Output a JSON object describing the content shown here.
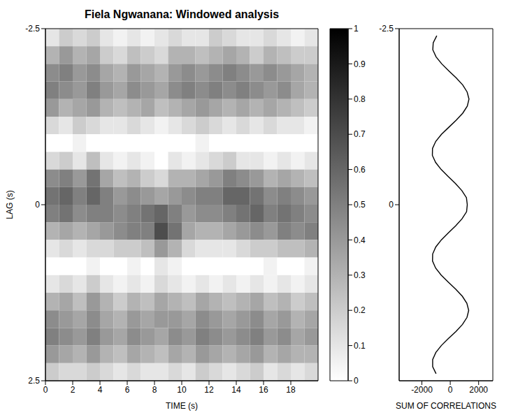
{
  "chart_data": [
    {
      "type": "heatmap",
      "title": "Fiela Ngwanana: Windowed analysis",
      "x_label": "TIME (s)",
      "y_label": "LAG (s)",
      "xlim": [
        0,
        20
      ],
      "xticks": [
        0,
        2,
        4,
        6,
        8,
        10,
        12,
        14,
        16,
        18
      ],
      "ylim": [
        2.5,
        -2.5
      ],
      "yticks": [
        -2.5,
        0,
        2.5
      ],
      "grid": false,
      "x_bins": [
        0,
        1,
        2,
        3,
        4,
        5,
        6,
        7,
        8,
        9,
        10,
        11,
        12,
        13,
        14,
        15,
        16,
        17,
        18,
        19,
        20
      ],
      "y_bins": [
        -2.5,
        -2.25,
        -2,
        -1.75,
        -1.5,
        -1.25,
        -1,
        -0.75,
        -0.5,
        -0.25,
        0,
        0.25,
        0.5,
        0.75,
        1,
        1.25,
        1.5,
        1.75,
        2,
        2.25,
        2.5
      ],
      "cells": [
        [
          0.1,
          0.2,
          0.15,
          0.2,
          0.1,
          0.05,
          0.1,
          0.05,
          0.1,
          0.15,
          0.1,
          0.1,
          0.2,
          0.15,
          0.1,
          0.1,
          0.15,
          0.1,
          0.05,
          0.1
        ],
        [
          0.3,
          0.4,
          0.3,
          0.35,
          0.2,
          0.15,
          0.25,
          0.2,
          0.15,
          0.3,
          0.3,
          0.25,
          0.3,
          0.35,
          0.3,
          0.2,
          0.3,
          0.25,
          0.2,
          0.2
        ],
        [
          0.45,
          0.5,
          0.4,
          0.45,
          0.35,
          0.3,
          0.4,
          0.35,
          0.3,
          0.4,
          0.45,
          0.4,
          0.45,
          0.5,
          0.45,
          0.4,
          0.45,
          0.4,
          0.35,
          0.3
        ],
        [
          0.5,
          0.45,
          0.4,
          0.5,
          0.4,
          0.35,
          0.45,
          0.4,
          0.35,
          0.45,
          0.5,
          0.45,
          0.5,
          0.45,
          0.5,
          0.45,
          0.4,
          0.45,
          0.35,
          0.3
        ],
        [
          0.4,
          0.3,
          0.35,
          0.4,
          0.3,
          0.25,
          0.3,
          0.35,
          0.25,
          0.3,
          0.35,
          0.4,
          0.35,
          0.3,
          0.35,
          0.3,
          0.35,
          0.3,
          0.25,
          0.2
        ],
        [
          0.15,
          0.1,
          0.2,
          0.15,
          0.1,
          0.1,
          0.15,
          0.1,
          0.05,
          0.1,
          0.15,
          0.2,
          0.15,
          0.1,
          0.15,
          0.1,
          0.15,
          0.1,
          0.1,
          0.05
        ],
        [
          0,
          0,
          0.05,
          0,
          0,
          0,
          0,
          0,
          0,
          0,
          0,
          0.05,
          0,
          0,
          0,
          0,
          0,
          0,
          0,
          0
        ],
        [
          0.15,
          0.2,
          0.1,
          0.25,
          0.1,
          0.05,
          0.1,
          0.05,
          0,
          0.1,
          0.05,
          0.1,
          0.15,
          0.2,
          0.1,
          0.1,
          0.05,
          0.1,
          0.05,
          0.1
        ],
        [
          0.45,
          0.5,
          0.4,
          0.55,
          0.35,
          0.25,
          0.3,
          0.2,
          0.15,
          0.3,
          0.3,
          0.35,
          0.4,
          0.5,
          0.45,
          0.4,
          0.3,
          0.35,
          0.3,
          0.25
        ],
        [
          0.55,
          0.6,
          0.5,
          0.6,
          0.5,
          0.4,
          0.45,
          0.4,
          0.35,
          0.4,
          0.45,
          0.5,
          0.5,
          0.6,
          0.6,
          0.55,
          0.45,
          0.5,
          0.45,
          0.4
        ],
        [
          0.5,
          0.55,
          0.45,
          0.5,
          0.5,
          0.45,
          0.5,
          0.55,
          0.6,
          0.5,
          0.4,
          0.45,
          0.45,
          0.5,
          0.55,
          0.6,
          0.5,
          0.55,
          0.5,
          0.45
        ],
        [
          0.3,
          0.35,
          0.3,
          0.35,
          0.4,
          0.45,
          0.5,
          0.5,
          0.7,
          0.55,
          0.35,
          0.3,
          0.3,
          0.35,
          0.4,
          0.45,
          0.4,
          0.5,
          0.45,
          0.5
        ],
        [
          0.1,
          0.15,
          0.1,
          0.15,
          0.15,
          0.2,
          0.2,
          0.25,
          0.4,
          0.3,
          0.15,
          0.1,
          0.1,
          0.1,
          0.15,
          0.2,
          0.2,
          0.25,
          0.25,
          0.3
        ],
        [
          0,
          0,
          0,
          0.05,
          0,
          0,
          0.05,
          0,
          0.1,
          0.05,
          0,
          0,
          0,
          0,
          0,
          0,
          0.05,
          0,
          0,
          0.05
        ],
        [
          0.1,
          0.15,
          0.1,
          0.2,
          0.1,
          0.05,
          0.1,
          0.05,
          0.15,
          0.1,
          0.05,
          0.1,
          0.05,
          0.1,
          0.05,
          0.1,
          0.05,
          0.1,
          0.05,
          0.1
        ],
        [
          0.3,
          0.35,
          0.25,
          0.4,
          0.3,
          0.2,
          0.3,
          0.25,
          0.35,
          0.3,
          0.25,
          0.35,
          0.3,
          0.25,
          0.3,
          0.35,
          0.25,
          0.3,
          0.2,
          0.25
        ],
        [
          0.45,
          0.4,
          0.35,
          0.45,
          0.35,
          0.3,
          0.4,
          0.35,
          0.4,
          0.4,
          0.35,
          0.45,
          0.4,
          0.35,
          0.4,
          0.45,
          0.35,
          0.4,
          0.3,
          0.35
        ],
        [
          0.5,
          0.45,
          0.4,
          0.5,
          0.4,
          0.35,
          0.45,
          0.4,
          0.35,
          0.45,
          0.4,
          0.5,
          0.45,
          0.4,
          0.45,
          0.5,
          0.4,
          0.45,
          0.35,
          0.4
        ],
        [
          0.4,
          0.35,
          0.3,
          0.4,
          0.3,
          0.25,
          0.35,
          0.3,
          0.25,
          0.35,
          0.3,
          0.4,
          0.35,
          0.3,
          0.35,
          0.4,
          0.3,
          0.35,
          0.3,
          0.3
        ],
        [
          0.2,
          0.15,
          0.15,
          0.2,
          0.15,
          0.1,
          0.15,
          0.1,
          0.1,
          0.15,
          0.1,
          0.2,
          0.15,
          0.1,
          0.15,
          0.2,
          0.1,
          0.15,
          0.1,
          0.15
        ]
      ],
      "colorbar": {
        "range": [
          0,
          1
        ],
        "ticks": [
          0,
          0.1,
          0.2,
          0.3,
          0.4,
          0.5,
          0.6,
          0.7,
          0.8,
          0.9,
          1
        ],
        "colors": [
          "#ffffff",
          "#000000"
        ]
      }
    },
    {
      "type": "line",
      "x_label": "SUM OF CORRELATIONS",
      "color": "#000000",
      "grid": false,
      "xlim": [
        -3600,
        3000
      ],
      "xticks": [
        -2000,
        0,
        2000
      ],
      "ylim": [
        2.5,
        -2.5
      ],
      "yticks": [
        -2.5,
        0
      ],
      "y": [
        -2.4,
        -2.3,
        -2.2,
        -2.1,
        -2,
        -1.9,
        -1.8,
        -1.7,
        -1.6,
        -1.5,
        -1.4,
        -1.3,
        -1.2,
        -1.1,
        -1,
        -0.9,
        -0.8,
        -0.7,
        -0.6,
        -0.5,
        -0.4,
        -0.3,
        -0.2,
        -0.1,
        0,
        0.1,
        0.2,
        0.3,
        0.4,
        0.5,
        0.6,
        0.7,
        0.8,
        0.9,
        1,
        1.1,
        1.2,
        1.3,
        1.4,
        1.5,
        1.6,
        1.7,
        1.8,
        1.9,
        2,
        2.1,
        2.2,
        2.3,
        2.4
      ],
      "x": [
        -950,
        -1200,
        -1230,
        -1000,
        -600,
        -100,
        420,
        880,
        1190,
        1320,
        1200,
        880,
        420,
        -100,
        -620,
        -1020,
        -1250,
        -1260,
        -1030,
        -640,
        -140,
        370,
        820,
        1140,
        1200,
        1150,
        830,
        380,
        -130,
        -630,
        -1020,
        -1240,
        -1250,
        -1030,
        -640,
        -130,
        390,
        850,
        1170,
        1300,
        1180,
        860,
        400,
        -130,
        -630,
        -1020,
        -1240,
        -1240,
        -1000
      ]
    }
  ]
}
